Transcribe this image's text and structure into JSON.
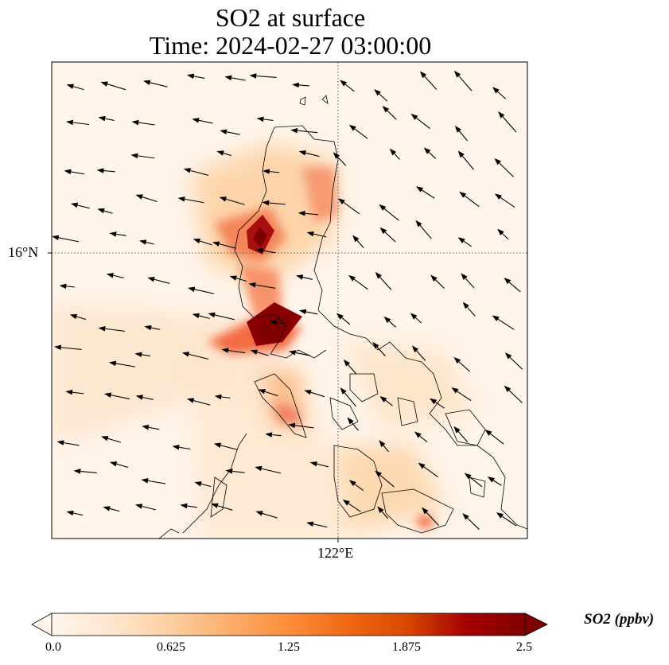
{
  "title": {
    "line1": "SO2 at surface",
    "line2": "Time: 2024-02-27 03:00:00"
  },
  "axes": {
    "lat_tick": "16°N",
    "lon_tick": "122°E",
    "gridlines": "dotted"
  },
  "colorbar": {
    "label": "SO2 (ppbv)",
    "ticks": [
      "0.0",
      "0.625",
      "1.25",
      "1.875",
      "2.5"
    ],
    "min": 0.0,
    "max": 2.5,
    "extend": "both",
    "colormap": [
      "#fff5eb",
      "#fee6ce",
      "#fdd0a2",
      "#fdae6b",
      "#fd8d3c",
      "#f16913",
      "#d94801",
      "#a50000",
      "#7f0000"
    ]
  },
  "colors": {
    "coastline": "#000000",
    "wind_arrow": "#000000",
    "background": "#fff5eb"
  }
}
